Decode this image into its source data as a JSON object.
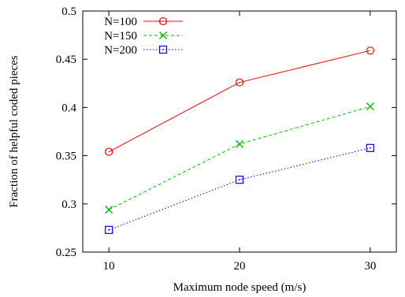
{
  "chart_data": {
    "type": "line",
    "xlabel": "Maximum node speed (m/s)",
    "ylabel": "Fraction of helpful coded pieces",
    "x": [
      10,
      20,
      30
    ],
    "xlim": [
      8,
      32
    ],
    "ylim": [
      0.25,
      0.5
    ],
    "x_ticks": [
      "10",
      "20",
      "30"
    ],
    "y_ticks": [
      "0.25",
      "0.3",
      "0.35",
      "0.4",
      "0.45",
      "0.5"
    ],
    "grid": false,
    "legend_position": "top-left",
    "series": [
      {
        "name": "N=100",
        "values": [
          0.354,
          0.426,
          0.459
        ],
        "color": "#ff0000",
        "marker": "circle",
        "dash": "solid"
      },
      {
        "name": "N=150",
        "values": [
          0.294,
          0.362,
          0.401
        ],
        "color": "#00c000",
        "marker": "cross",
        "dash": "dashed"
      },
      {
        "name": "N=200",
        "values": [
          0.273,
          0.325,
          0.358
        ],
        "color": "#0000ff",
        "marker": "square",
        "dash": "dotted"
      }
    ]
  }
}
